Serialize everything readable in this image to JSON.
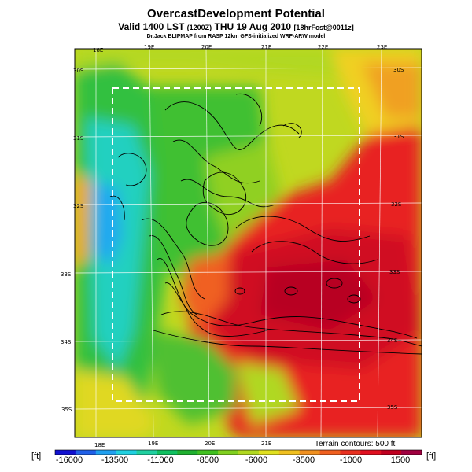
{
  "header": {
    "title": "OvercastDevelopment Potential",
    "valid_main": "Valid 1400 LST",
    "valid_utc": "(1200Z)",
    "valid_date": "THU 19 Aug 2010",
    "forecast": "[18hrFcst@0011z]",
    "credit": "Dr.Jack BLIPMAP from RASP 12km GFS-initialized WRF-ARW model"
  },
  "map": {
    "lon_labels": [
      "18E",
      "19E",
      "20E",
      "21E",
      "22E",
      "23E"
    ],
    "lon_labels_bottom": [
      "18E",
      "19E",
      "20E",
      "21E"
    ],
    "lat_labels": [
      "30S",
      "31S",
      "32S",
      "33S",
      "34S",
      "35S"
    ],
    "terrain_note": "Terrain contours: 500 ft"
  },
  "colorbar": {
    "unit": "[ft]",
    "labels": [
      "-16000",
      "-13500",
      "-11000",
      "-8500",
      "-6000",
      "-3500",
      "-1000",
      "1500"
    ],
    "colors": [
      "#1010d0",
      "#2060e8",
      "#20a0f0",
      "#20d0e0",
      "#20d0a0",
      "#10c060",
      "#20b030",
      "#40c020",
      "#80d020",
      "#b0d820",
      "#e0e020",
      "#f0c020",
      "#f09020",
      "#f06020",
      "#e83020",
      "#e01020",
      "#c00020",
      "#a00040"
    ]
  }
}
